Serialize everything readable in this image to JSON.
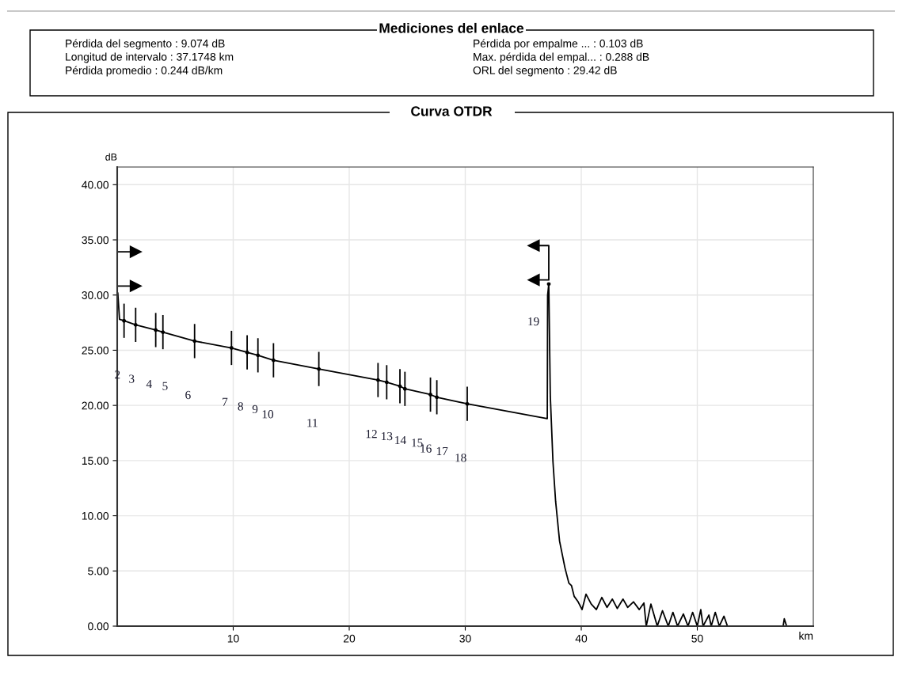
{
  "chart_data": {
    "type": "line",
    "title": "Mediciones del enlace",
    "subtitle": "Curva OTDR",
    "xlabel": "km",
    "ylabel": "dB",
    "annotations": [
      "Pérdida del segmento : 9.074 dB",
      "Longitud de intervalo : 37.1748 km",
      "Pérdida promedio : 0.244 dB/km",
      "Pérdida por empalme ... : 0.103 dB",
      "Max. pérdida del empal... : 0.288 dB",
      "ORL del segmento : 29.42 dB",
      "2",
      "3",
      "4",
      "5",
      "6",
      "7",
      "8",
      "9",
      "10",
      "11",
      "12",
      "13",
      "14",
      "15",
      "16",
      "17",
      "18",
      "19"
    ],
    "series": [
      {
        "color": "#000000",
        "marker": "none",
        "x": [
          0,
          0.05,
          0.2,
          0.59,
          1.59,
          3.32,
          3.94,
          6.67,
          9.85,
          11.2,
          12.13,
          13.47,
          17.38,
          22.48,
          23.23,
          24.37,
          24.8,
          27.0,
          27.55,
          30.17,
          37.07,
          37.1,
          37.2,
          37.33,
          37.56,
          37.79,
          38.13,
          38.59,
          38.93,
          39.16,
          39.39,
          39.73,
          40.07,
          40.41,
          40.86,
          41.3,
          41.77,
          42.22,
          42.68,
          43.1,
          43.6,
          44.0,
          44.5,
          45.0,
          45.4,
          45.6,
          46.0,
          46.55,
          47.0,
          47.5,
          47.9,
          48.3,
          48.8,
          49.2,
          49.6,
          50.0,
          50.3,
          50.5,
          51.0,
          51.2,
          51.55,
          51.9,
          52.3,
          52.6,
          57.4,
          57.5,
          57.7,
          60
        ],
        "values": [
          30.2,
          30.2,
          27.8,
          27.67,
          27.3,
          26.83,
          26.64,
          25.83,
          25.21,
          24.8,
          24.54,
          24.09,
          23.3,
          22.3,
          22.1,
          21.74,
          21.5,
          20.98,
          20.74,
          20.14,
          18.8,
          30.0,
          31.0,
          20.9,
          14.9,
          11.3,
          7.7,
          5.3,
          3.9,
          3.66,
          2.7,
          2.2,
          1.5,
          2.9,
          2.0,
          1.5,
          2.6,
          1.7,
          2.45,
          1.6,
          2.45,
          1.7,
          2.2,
          1.5,
          2.1,
          0,
          2.0,
          0,
          1.4,
          0,
          1.25,
          0,
          1.1,
          0,
          1.25,
          0,
          1.5,
          0,
          1.0,
          0,
          1.25,
          0,
          0.9,
          0,
          0,
          0.67,
          0,
          0
        ]
      },
      {
        "type": "scatter",
        "color": "#000000",
        "marker": "circle",
        "x": [
          0.59,
          1.59,
          3.32,
          3.94,
          6.67,
          9.85,
          11.2,
          12.13,
          13.47,
          17.38,
          22.48,
          23.23,
          24.37,
          24.8,
          27.0,
          27.55,
          30.17,
          37.2
        ],
        "values": [
          27.67,
          27.3,
          26.83,
          26.64,
          25.83,
          25.21,
          24.8,
          24.54,
          24.09,
          23.3,
          22.3,
          22.1,
          21.74,
          21.5,
          20.98,
          20.74,
          20.14,
          31.0
        ],
        "errors": [
          1.55,
          1.55,
          1.55,
          1.55,
          1.55,
          1.55,
          1.55,
          1.55,
          1.55,
          1.55,
          1.55,
          1.55,
          1.55,
          1.55,
          1.55,
          1.55,
          1.55,
          null
        ]
      },
      {
        "color": "#000000",
        "marker": "triangle",
        "x": [
          1.6,
          0,
          0,
          1.6
        ],
        "values": [
          33.92,
          33.92,
          30.82,
          30.82
        ]
      },
      {
        "color": "#000000",
        "marker": "triangle",
        "x": [
          35.9,
          37.2,
          37.2,
          35.9
        ],
        "values": [
          34.48,
          34.48,
          31.37,
          31.37
        ]
      }
    ],
    "xlim": [
      0,
      60
    ],
    "ylim": [
      0,
      41.6
    ],
    "xticks": [
      10,
      20,
      30,
      40,
      50
    ],
    "yticks": [
      {
        "value": 0,
        "label": "0.00"
      },
      {
        "value": 5,
        "label": "5.00"
      },
      {
        "value": 10,
        "label": "10.00"
      },
      {
        "value": 15,
        "label": "15.00"
      },
      {
        "value": 20,
        "label": "20.00"
      },
      {
        "value": 25,
        "label": "25.00"
      },
      {
        "value": 30,
        "label": "30.00"
      },
      {
        "value": 35,
        "label": "35.00"
      },
      {
        "value": 40,
        "label": "40.00"
      }
    ],
    "grid": true,
    "legend": false
  }
}
